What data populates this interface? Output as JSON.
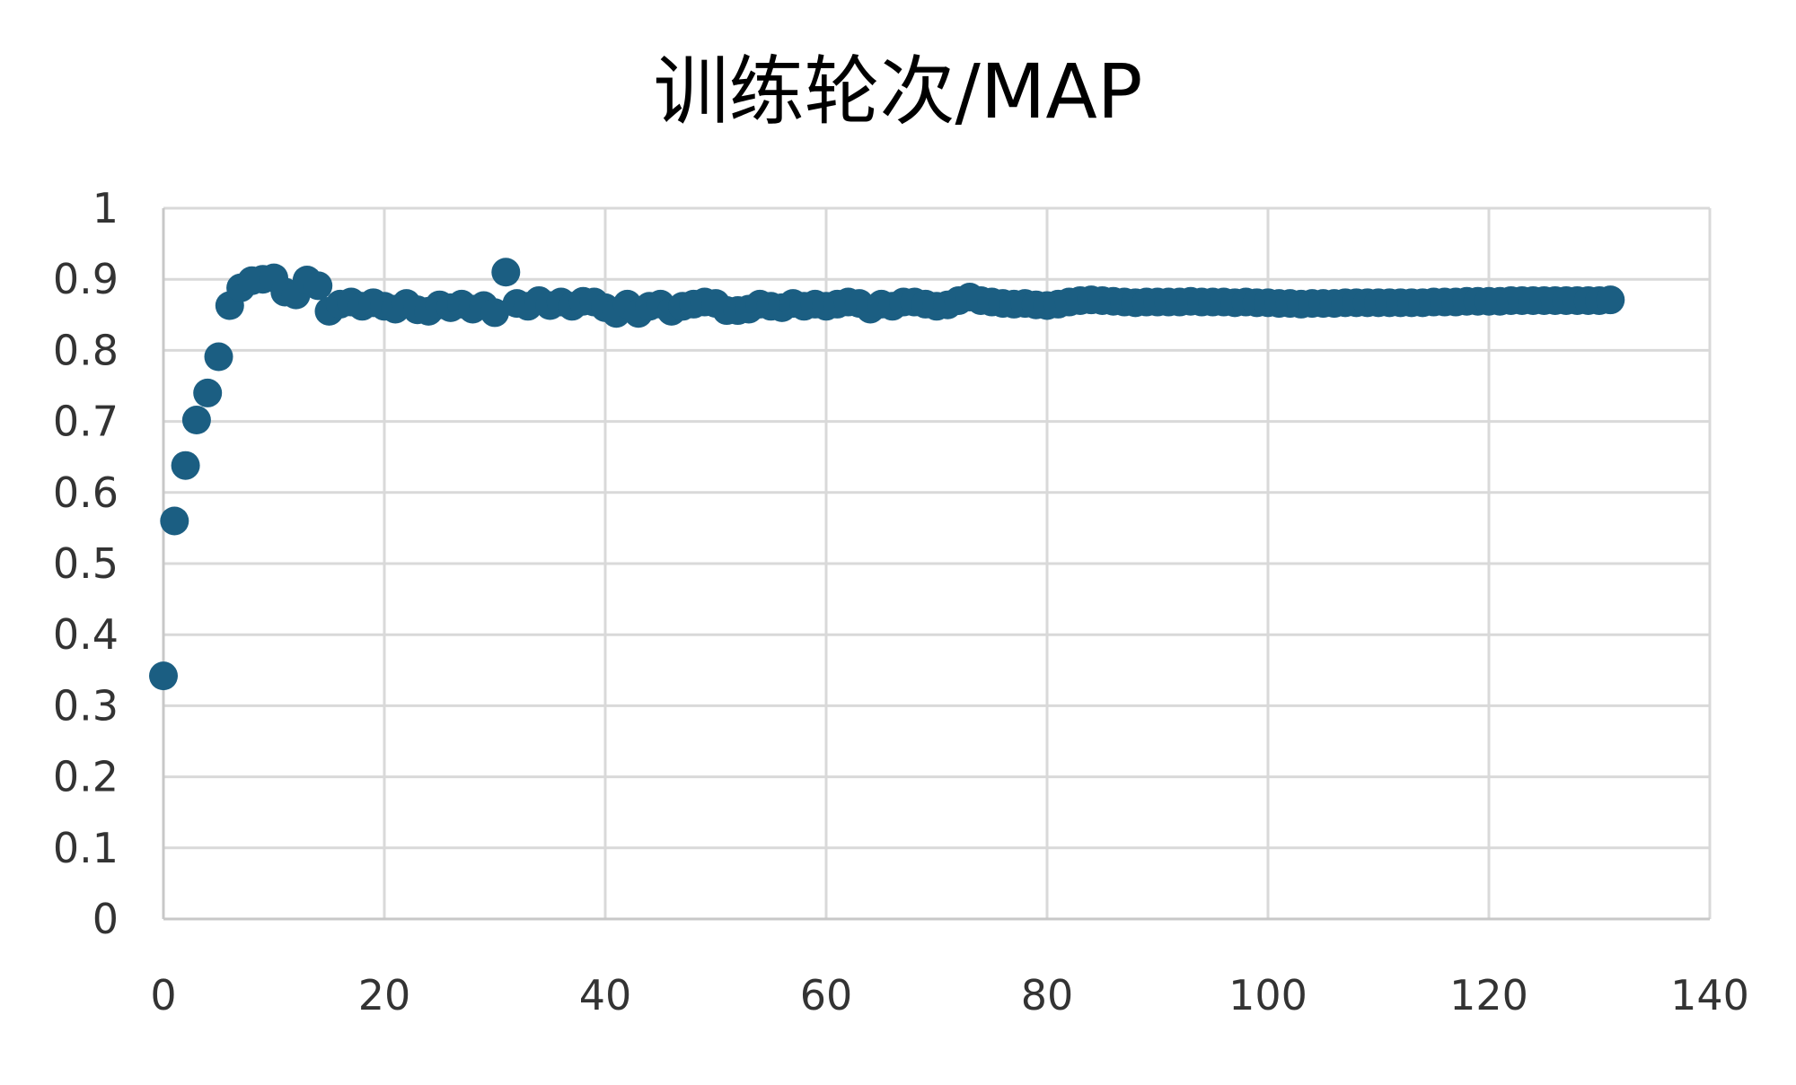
{
  "chart_data": {
    "type": "scatter",
    "title": "训练轮次/MAP",
    "xlabel": "",
    "ylabel": "",
    "xlim": [
      0,
      140
    ],
    "ylim": [
      0,
      1
    ],
    "x_ticks": [
      "0",
      "20",
      "40",
      "60",
      "80",
      "100",
      "120",
      "140"
    ],
    "y_ticks": [
      "0",
      "0.1",
      "0.2",
      "0.3",
      "0.4",
      "0.5",
      "0.6",
      "0.7",
      "0.8",
      "0.9",
      "1"
    ],
    "grid": true,
    "legend": "none",
    "marker_color": "#1b5e82",
    "points": [
      [
        0,
        0.342
      ],
      [
        1,
        0.56
      ],
      [
        2,
        0.638
      ],
      [
        3,
        0.702
      ],
      [
        4,
        0.74
      ],
      [
        5,
        0.791
      ],
      [
        6,
        0.863
      ],
      [
        7,
        0.888
      ],
      [
        8,
        0.898
      ],
      [
        9,
        0.9
      ],
      [
        10,
        0.902
      ],
      [
        11,
        0.882
      ],
      [
        12,
        0.878
      ],
      [
        13,
        0.899
      ],
      [
        14,
        0.891
      ],
      [
        15,
        0.855
      ],
      [
        16,
        0.865
      ],
      [
        17,
        0.868
      ],
      [
        18,
        0.862
      ],
      [
        19,
        0.867
      ],
      [
        20,
        0.862
      ],
      [
        21,
        0.858
      ],
      [
        22,
        0.866
      ],
      [
        23,
        0.857
      ],
      [
        24,
        0.855
      ],
      [
        25,
        0.864
      ],
      [
        26,
        0.86
      ],
      [
        27,
        0.865
      ],
      [
        28,
        0.858
      ],
      [
        29,
        0.863
      ],
      [
        30,
        0.853
      ],
      [
        31,
        0.91
      ],
      [
        32,
        0.866
      ],
      [
        33,
        0.862
      ],
      [
        34,
        0.87
      ],
      [
        35,
        0.863
      ],
      [
        36,
        0.868
      ],
      [
        37,
        0.862
      ],
      [
        38,
        0.869
      ],
      [
        39,
        0.868
      ],
      [
        40,
        0.86
      ],
      [
        41,
        0.852
      ],
      [
        42,
        0.865
      ],
      [
        43,
        0.852
      ],
      [
        44,
        0.862
      ],
      [
        45,
        0.865
      ],
      [
        46,
        0.855
      ],
      [
        47,
        0.862
      ],
      [
        48,
        0.865
      ],
      [
        49,
        0.868
      ],
      [
        50,
        0.866
      ],
      [
        51,
        0.856
      ],
      [
        52,
        0.856
      ],
      [
        53,
        0.858
      ],
      [
        54,
        0.865
      ],
      [
        55,
        0.862
      ],
      [
        56,
        0.86
      ],
      [
        57,
        0.866
      ],
      [
        58,
        0.862
      ],
      [
        59,
        0.865
      ],
      [
        60,
        0.862
      ],
      [
        61,
        0.865
      ],
      [
        62,
        0.868
      ],
      [
        63,
        0.866
      ],
      [
        64,
        0.858
      ],
      [
        65,
        0.865
      ],
      [
        66,
        0.862
      ],
      [
        67,
        0.868
      ],
      [
        68,
        0.868
      ],
      [
        69,
        0.865
      ],
      [
        70,
        0.862
      ],
      [
        71,
        0.864
      ],
      [
        72,
        0.87
      ],
      [
        73,
        0.875
      ],
      [
        74,
        0.87
      ],
      [
        75,
        0.868
      ],
      [
        76,
        0.866
      ],
      [
        77,
        0.865
      ],
      [
        78,
        0.866
      ],
      [
        79,
        0.864
      ],
      [
        80,
        0.863
      ],
      [
        81,
        0.865
      ],
      [
        82,
        0.868
      ],
      [
        83,
        0.87
      ],
      [
        84,
        0.871
      ],
      [
        85,
        0.87
      ],
      [
        86,
        0.869
      ],
      [
        87,
        0.868
      ],
      [
        88,
        0.867
      ],
      [
        89,
        0.868
      ],
      [
        90,
        0.868
      ],
      [
        91,
        0.868
      ],
      [
        92,
        0.868
      ],
      [
        93,
        0.869
      ],
      [
        94,
        0.868
      ],
      [
        95,
        0.868
      ],
      [
        96,
        0.868
      ],
      [
        97,
        0.867
      ],
      [
        98,
        0.868
      ],
      [
        99,
        0.867
      ],
      [
        100,
        0.867
      ],
      [
        101,
        0.866
      ],
      [
        102,
        0.866
      ],
      [
        103,
        0.865
      ],
      [
        104,
        0.866
      ],
      [
        105,
        0.866
      ],
      [
        106,
        0.866
      ],
      [
        107,
        0.867
      ],
      [
        108,
        0.867
      ],
      [
        109,
        0.867
      ],
      [
        110,
        0.867
      ],
      [
        111,
        0.867
      ],
      [
        112,
        0.867
      ],
      [
        113,
        0.867
      ],
      [
        114,
        0.867
      ],
      [
        115,
        0.868
      ],
      [
        116,
        0.868
      ],
      [
        117,
        0.868
      ],
      [
        118,
        0.869
      ],
      [
        119,
        0.869
      ],
      [
        120,
        0.869
      ],
      [
        121,
        0.869
      ],
      [
        122,
        0.87
      ],
      [
        123,
        0.87
      ],
      [
        124,
        0.87
      ],
      [
        125,
        0.87
      ],
      [
        126,
        0.87
      ],
      [
        127,
        0.87
      ],
      [
        128,
        0.87
      ],
      [
        129,
        0.87
      ],
      [
        130,
        0.87
      ],
      [
        131,
        0.871
      ]
    ]
  }
}
